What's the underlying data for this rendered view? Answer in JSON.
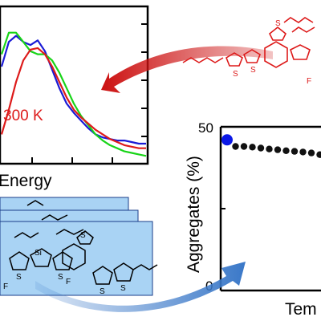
{
  "top_left_plot": {
    "annotation": "300 K",
    "xlabel": "Energy",
    "annotation_color": "#dd1a1a",
    "series_colors": [
      "#1a1ad6",
      "#18d418",
      "#dd1a1a"
    ]
  },
  "right_plot": {
    "ylabel": "Aggregates (%)",
    "xlabel": "Tem",
    "ytick_labels": [
      "50",
      "0"
    ],
    "first_point_color": "#0b18e6",
    "point_color": "#111111"
  },
  "top_right_molecule": {
    "color": "#dd1a1a",
    "atom_labels": [
      "S",
      "S",
      "S",
      "F"
    ]
  },
  "bottom_left_molecule": {
    "atom_labels": [
      "Si",
      "S",
      "S",
      "F",
      "S",
      "S",
      "F",
      "S"
    ],
    "panel_fill": "#a9d3f4"
  },
  "arrow_colors": {
    "red": "#cc1111",
    "blue": "#3a78c8"
  },
  "chart_data": [
    {
      "type": "line",
      "series": [
        {
          "x": [
            0,
            1,
            2,
            3,
            4,
            5,
            6,
            7,
            8,
            9,
            10,
            11,
            12,
            13,
            14,
            15,
            16,
            17,
            18,
            19,
            20
          ],
          "values": [
            0.62,
            0.78,
            0.82,
            0.78,
            0.76,
            0.79,
            0.72,
            0.6,
            0.48,
            0.38,
            0.32,
            0.27,
            0.22,
            0.18,
            0.16,
            0.15,
            0.14,
            0.14,
            0.13,
            0.12,
            0.12
          ]
        },
        {
          "x": [
            0,
            1,
            2,
            3,
            4,
            5,
            6,
            7,
            8,
            9,
            10,
            11,
            12,
            13,
            14,
            15,
            16,
            17,
            18,
            19,
            20
          ],
          "values": [
            0.7,
            0.84,
            0.84,
            0.78,
            0.72,
            0.7,
            0.7,
            0.66,
            0.58,
            0.48,
            0.38,
            0.3,
            0.24,
            0.18,
            0.14,
            0.11,
            0.09,
            0.07,
            0.06,
            0.05,
            0.04
          ]
        },
        {
          "x": [
            0,
            1,
            2,
            3,
            4,
            5,
            6,
            7,
            8,
            9,
            10,
            11,
            12,
            13,
            14,
            15,
            16,
            17,
            18,
            19,
            20
          ],
          "values": [
            0.18,
            0.34,
            0.52,
            0.66,
            0.73,
            0.74,
            0.7,
            0.62,
            0.52,
            0.42,
            0.34,
            0.29,
            0.25,
            0.21,
            0.18,
            0.15,
            0.13,
            0.11,
            0.1,
            0.09,
            0.09
          ]
        }
      ],
      "xlabel": "Energy",
      "ylim": [
        0,
        1
      ]
    },
    {
      "type": "scatter",
      "x": [
        0,
        1,
        2,
        3,
        4,
        5,
        6,
        7,
        8,
        9,
        10,
        11
      ],
      "values": [
        46,
        44,
        44,
        43.8,
        43.5,
        43.2,
        43,
        42.7,
        42.5,
        42.3,
        42,
        41.5
      ],
      "ylim": [
        0,
        50
      ],
      "ylabel": "Aggregates (%)",
      "xlabel": "Tem",
      "yticks": [
        0,
        50
      ]
    }
  ]
}
